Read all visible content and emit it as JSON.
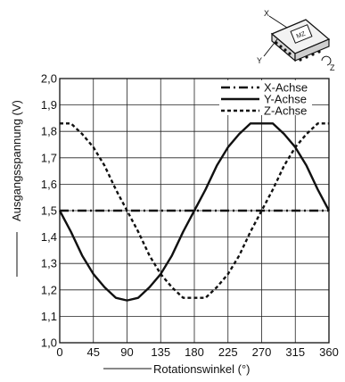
{
  "chart_data": {
    "type": "line",
    "xlabel": "Rotationswinkel (°)",
    "ylabel": "Ausgangsspannung (V)",
    "xlim": [
      0,
      360
    ],
    "ylim": [
      1.0,
      2.0
    ],
    "x_ticks": [
      0,
      45,
      90,
      135,
      180,
      225,
      270,
      315,
      360
    ],
    "y_ticks": [
      "1,0",
      "1,1",
      "1,2",
      "1,3",
      "1,4",
      "1,5",
      "1,6",
      "1,7",
      "1,8",
      "1,9",
      "2,0"
    ],
    "grid": true,
    "legend_position": "top-right",
    "x": [
      0,
      15,
      30,
      45,
      60,
      75,
      90,
      105,
      120,
      135,
      150,
      165,
      180,
      195,
      210,
      225,
      240,
      255,
      270,
      285,
      300,
      315,
      330,
      345,
      360
    ],
    "series": [
      {
        "name": "X-Achse",
        "style": "dash-dot",
        "values": [
          1.5,
          1.5,
          1.5,
          1.5,
          1.5,
          1.5,
          1.5,
          1.5,
          1.5,
          1.5,
          1.5,
          1.5,
          1.5,
          1.5,
          1.5,
          1.5,
          1.5,
          1.5,
          1.5,
          1.5,
          1.5,
          1.5,
          1.5,
          1.5,
          1.5
        ]
      },
      {
        "name": "Y-Achse",
        "style": "solid",
        "values": [
          1.5,
          1.42,
          1.33,
          1.26,
          1.21,
          1.17,
          1.16,
          1.17,
          1.21,
          1.26,
          1.33,
          1.42,
          1.5,
          1.58,
          1.67,
          1.74,
          1.79,
          1.83,
          1.83,
          1.83,
          1.79,
          1.74,
          1.67,
          1.58,
          1.5
        ]
      },
      {
        "name": "Z-Achse",
        "style": "dotted",
        "values": [
          1.83,
          1.83,
          1.79,
          1.74,
          1.67,
          1.58,
          1.5,
          1.42,
          1.33,
          1.26,
          1.21,
          1.17,
          1.17,
          1.17,
          1.21,
          1.26,
          1.33,
          1.42,
          1.5,
          1.58,
          1.67,
          1.74,
          1.79,
          1.83,
          1.83
        ]
      }
    ]
  },
  "chip_diagram": {
    "labels": [
      "X",
      "Y",
      "Z"
    ],
    "chip_text": "MZ"
  }
}
